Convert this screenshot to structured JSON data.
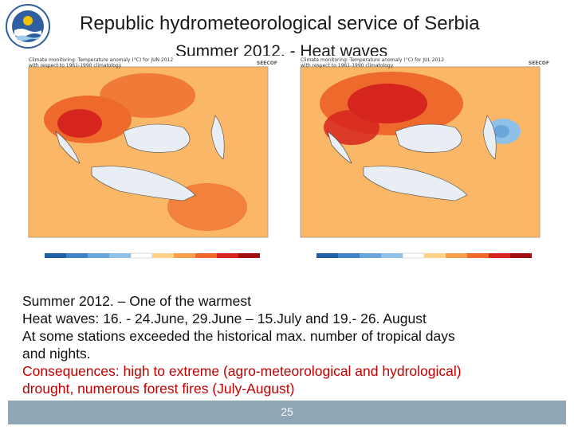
{
  "header": {
    "title": "Republic hydrometeorological service of Serbia",
    "subtitle": "Summer 2012. - Heat waves"
  },
  "maps": [
    {
      "caption_line1": "Climate monitoring: Temperature anomaly (°C) for JUN 2012",
      "caption_line2": "with respect to 1961-1990 climatology",
      "logo_text": "SEECOF"
    },
    {
      "caption_line1": "Climate monitoring: Temperature anomaly (°C) for JUL 2012",
      "caption_line2": "with respect to 1961-1990 climatology",
      "logo_text": "SEECOF"
    }
  ],
  "colors": {
    "cold_dark": "#1f5fa8",
    "cold_light": "#8ec0e8",
    "warm_light": "#fbd38a",
    "warm_mid": "#f7a14a",
    "warm_strong": "#ee6a2c",
    "hot": "#d6241e",
    "footer_bar": "#8ea6b5",
    "highlight_text": "#c00000"
  },
  "body": {
    "line1": "Summer 2012. – One of the warmest",
    "line2": "Heat waves: 16. - 24.June,  29.June – 15.July and 19.- 26. August",
    "line3": "At some stations exceeded the historical max. number of tropical days",
    "line4": "and nights.",
    "line5": "Consequences: high to extreme (agro-meteorological and hydrological)",
    "line6": "drought, numerous forest fires (July-August)"
  },
  "footer": {
    "page_number": "25"
  }
}
